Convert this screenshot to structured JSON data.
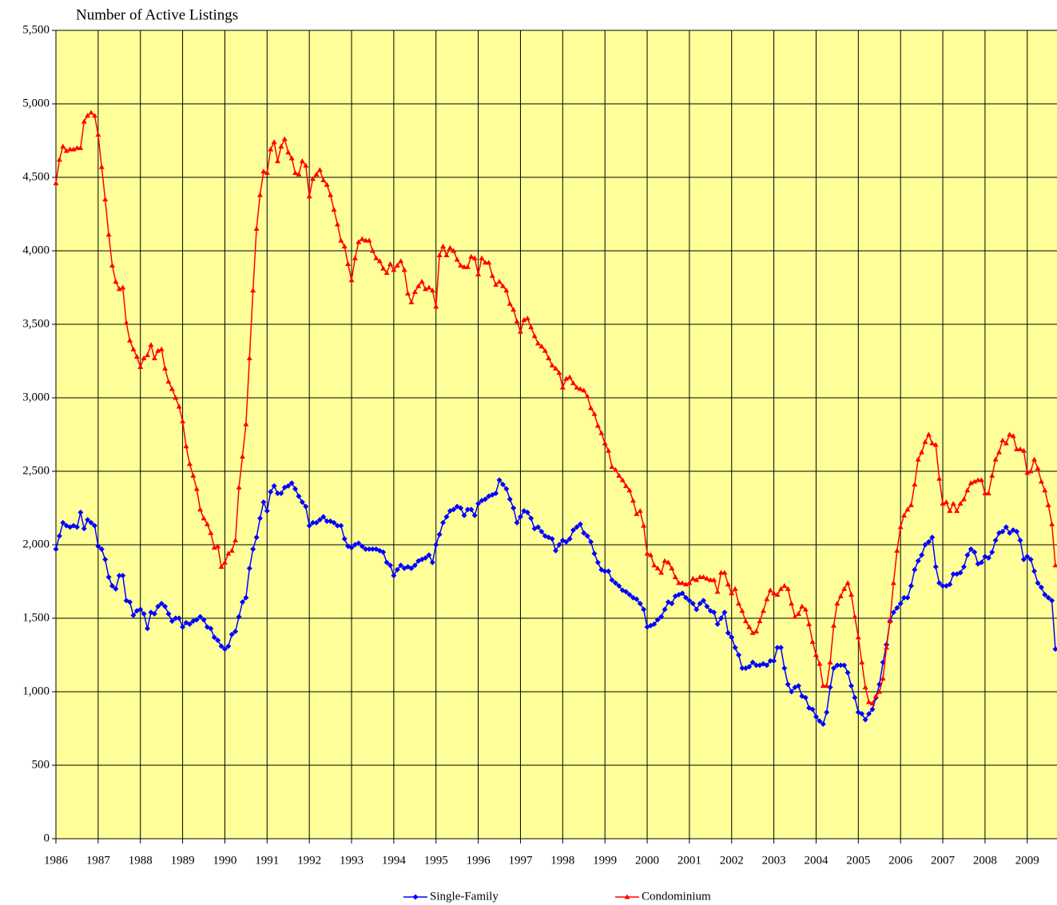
{
  "chart_data": {
    "type": "line",
    "title": "Number of Active Listings",
    "categories": [
      "1986",
      null,
      null,
      null,
      null,
      null,
      null,
      null,
      null,
      null,
      null,
      null,
      "1987",
      null,
      null,
      null,
      null,
      null,
      null,
      null,
      null,
      null,
      null,
      null,
      "1988",
      null,
      null,
      null,
      null,
      null,
      null,
      null,
      null,
      null,
      null,
      null,
      "1989",
      null,
      null,
      null,
      null,
      null,
      null,
      null,
      null,
      null,
      null,
      null,
      "1990",
      null,
      null,
      null,
      null,
      null,
      null,
      null,
      null,
      null,
      null,
      null,
      "1991",
      null,
      null,
      null,
      null,
      null,
      null,
      null,
      null,
      null,
      null,
      null,
      "1992",
      null,
      null,
      null,
      null,
      null,
      null,
      null,
      null,
      null,
      null,
      null,
      "1993",
      null,
      null,
      null,
      null,
      null,
      null,
      null,
      null,
      null,
      null,
      null,
      "1994",
      null,
      null,
      null,
      null,
      null,
      null,
      null,
      null,
      null,
      null,
      null,
      "1995",
      null,
      null,
      null,
      null,
      null,
      null,
      null,
      null,
      null,
      null,
      null,
      "1996",
      null,
      null,
      null,
      null,
      null,
      null,
      null,
      null,
      null,
      null,
      null,
      "1997",
      null,
      null,
      null,
      null,
      null,
      null,
      null,
      null,
      null,
      null,
      null,
      "1998",
      null,
      null,
      null,
      null,
      null,
      null,
      null,
      null,
      null,
      null,
      null,
      "1999",
      null,
      null,
      null,
      null,
      null,
      null,
      null,
      null,
      null,
      null,
      null,
      "2000",
      null,
      null,
      null,
      null,
      null,
      null,
      null,
      null,
      null,
      null,
      null,
      "2001",
      null,
      null,
      null,
      null,
      null,
      null,
      null,
      null,
      null,
      null,
      null,
      "2002",
      null,
      null,
      null,
      null,
      null,
      null,
      null,
      null,
      null,
      null,
      null,
      "2003",
      null,
      null,
      null,
      null,
      null,
      null,
      null,
      null,
      null,
      null,
      null,
      "2004",
      null,
      null,
      null,
      null,
      null,
      null,
      null,
      null,
      null,
      null,
      null,
      "2005",
      null,
      null,
      null,
      null,
      null,
      null,
      null,
      null,
      null,
      null,
      null,
      "2006",
      null,
      null,
      null,
      null,
      null,
      null,
      null,
      null,
      null,
      null,
      null,
      "2007",
      null,
      null,
      null,
      null,
      null,
      null,
      null,
      null,
      null,
      null,
      null,
      "2008",
      null,
      null,
      null,
      null,
      null,
      null,
      null,
      null,
      null,
      null,
      null,
      "2009",
      null,
      null,
      null,
      null,
      null,
      null,
      null,
      null
    ],
    "series": [
      {
        "name": "Single-Family",
        "color": "#0000ff",
        "marker": "diamond",
        "values": [
          1970,
          2060,
          2150,
          2130,
          2120,
          2130,
          2120,
          2220,
          2110,
          2170,
          2150,
          2130,
          1990,
          1970,
          1900,
          1780,
          1720,
          1700,
          1790,
          1790,
          1620,
          1610,
          1520,
          1550,
          1560,
          1530,
          1430,
          1540,
          1530,
          1580,
          1600,
          1580,
          1530,
          1480,
          1500,
          1500,
          1440,
          1470,
          1460,
          1480,
          1490,
          1510,
          1490,
          1440,
          1430,
          1370,
          1350,
          1310,
          1290,
          1310,
          1390,
          1410,
          1510,
          1610,
          1640,
          1840,
          1970,
          2050,
          2180,
          2290,
          2230,
          2360,
          2400,
          2350,
          2350,
          2390,
          2400,
          2420,
          2380,
          2330,
          2290,
          2260,
          2130,
          2150,
          2150,
          2170,
          2190,
          2160,
          2160,
          2150,
          2130,
          2130,
          2040,
          1990,
          1980,
          2000,
          2010,
          1990,
          1970,
          1970,
          1970,
          1970,
          1960,
          1950,
          1880,
          1860,
          1790,
          1830,
          1860,
          1840,
          1850,
          1840,
          1860,
          1890,
          1900,
          1910,
          1930,
          1880,
          2000,
          2070,
          2150,
          2190,
          2230,
          2240,
          2260,
          2250,
          2200,
          2240,
          2240,
          2200,
          2280,
          2300,
          2310,
          2330,
          2340,
          2350,
          2440,
          2410,
          2380,
          2310,
          2250,
          2150,
          2190,
          2230,
          2220,
          2180,
          2110,
          2120,
          2090,
          2060,
          2050,
          2040,
          1960,
          2000,
          2030,
          2020,
          2040,
          2100,
          2120,
          2140,
          2080,
          2060,
          2020,
          1940,
          1880,
          1830,
          1820,
          1820,
          1760,
          1740,
          1720,
          1690,
          1680,
          1660,
          1640,
          1630,
          1600,
          1560,
          1440,
          1450,
          1460,
          1490,
          1510,
          1560,
          1610,
          1600,
          1650,
          1660,
          1670,
          1640,
          1620,
          1600,
          1560,
          1600,
          1620,
          1580,
          1550,
          1540,
          1460,
          1500,
          1540,
          1400,
          1370,
          1300,
          1250,
          1160,
          1160,
          1170,
          1200,
          1180,
          1180,
          1190,
          1180,
          1210,
          1210,
          1300,
          1300,
          1160,
          1050,
          1000,
          1030,
          1040,
          970,
          960,
          890,
          880,
          830,
          800,
          780,
          860,
          1030,
          1160,
          1180,
          1180,
          1180,
          1130,
          1040,
          960,
          860,
          850,
          810,
          850,
          880,
          960,
          1050,
          1200,
          1320,
          1480,
          1540,
          1570,
          1600,
          1640,
          1640,
          1720,
          1830,
          1890,
          1930,
          2000,
          2020,
          2050,
          1850,
          1740,
          1720,
          1720,
          1730,
          1800,
          1800,
          1810,
          1850,
          1930,
          1970,
          1950,
          1870,
          1880,
          1920,
          1910,
          1950,
          2030,
          2080,
          2090,
          2120,
          2080,
          2100,
          2090,
          2030,
          1900,
          1920,
          1900,
          1820,
          1740,
          1710,
          1660,
          1640,
          1620,
          1290
        ]
      },
      {
        "name": "Condominium",
        "color": "#ff0000",
        "marker": "triangle",
        "values": [
          4460,
          4620,
          4710,
          4680,
          4690,
          4690,
          4700,
          4700,
          4880,
          4920,
          4940,
          4920,
          4790,
          4570,
          4350,
          4110,
          3900,
          3790,
          3740,
          3750,
          3510,
          3390,
          3330,
          3280,
          3210,
          3270,
          3290,
          3360,
          3270,
          3320,
          3330,
          3200,
          3110,
          3060,
          3000,
          2940,
          2840,
          2670,
          2550,
          2470,
          2380,
          2240,
          2180,
          2140,
          2080,
          1980,
          1990,
          1850,
          1880,
          1940,
          1960,
          2030,
          2390,
          2600,
          2820,
          3270,
          3730,
          4150,
          4380,
          4540,
          4530,
          4690,
          4740,
          4610,
          4710,
          4760,
          4670,
          4630,
          4530,
          4520,
          4610,
          4580,
          4370,
          4490,
          4520,
          4550,
          4480,
          4450,
          4380,
          4280,
          4180,
          4070,
          4030,
          3910,
          3800,
          3950,
          4060,
          4080,
          4070,
          4070,
          4000,
          3950,
          3930,
          3880,
          3850,
          3910,
          3870,
          3900,
          3930,
          3870,
          3710,
          3650,
          3720,
          3760,
          3790,
          3740,
          3750,
          3730,
          3620,
          3970,
          4030,
          3970,
          4020,
          4000,
          3940,
          3900,
          3890,
          3890,
          3960,
          3950,
          3840,
          3950,
          3920,
          3920,
          3830,
          3770,
          3790,
          3760,
          3730,
          3640,
          3600,
          3520,
          3450,
          3530,
          3540,
          3480,
          3420,
          3370,
          3350,
          3320,
          3270,
          3220,
          3200,
          3170,
          3070,
          3130,
          3140,
          3100,
          3070,
          3060,
          3050,
          3010,
          2930,
          2890,
          2810,
          2760,
          2690,
          2640,
          2530,
          2510,
          2470,
          2440,
          2400,
          2370,
          2300,
          2210,
          2230,
          2130,
          1940,
          1930,
          1860,
          1840,
          1810,
          1890,
          1880,
          1840,
          1780,
          1740,
          1740,
          1730,
          1740,
          1770,
          1760,
          1780,
          1780,
          1770,
          1760,
          1760,
          1680,
          1810,
          1810,
          1730,
          1670,
          1700,
          1600,
          1550,
          1480,
          1440,
          1400,
          1410,
          1480,
          1550,
          1630,
          1690,
          1670,
          1660,
          1700,
          1720,
          1700,
          1600,
          1510,
          1530,
          1580,
          1560,
          1460,
          1340,
          1250,
          1190,
          1040,
          1040,
          1200,
          1450,
          1600,
          1650,
          1700,
          1740,
          1660,
          1510,
          1370,
          1200,
          1030,
          930,
          920,
          970,
          1000,
          1090,
          1300,
          1480,
          1740,
          1960,
          2120,
          2200,
          2240,
          2270,
          2410,
          2580,
          2630,
          2700,
          2750,
          2690,
          2680,
          2450,
          2280,
          2290,
          2230,
          2280,
          2230,
          2280,
          2310,
          2370,
          2420,
          2430,
          2440,
          2440,
          2350,
          2350,
          2470,
          2580,
          2630,
          2710,
          2690,
          2750,
          2740,
          2650,
          2650,
          2640,
          2490,
          2500,
          2580,
          2520,
          2430,
          2370,
          2270,
          2140,
          1860
        ]
      }
    ],
    "ylim": [
      0,
      5500
    ],
    "yticks": [
      0,
      500,
      {
        "value": 1000,
        "label": "1,000"
      },
      {
        "value": 1500,
        "label": "1,500"
      },
      {
        "value": 2000,
        "label": "2,000"
      },
      {
        "value": 2500,
        "label": "2,500"
      },
      {
        "value": 3000,
        "label": "3,000"
      },
      {
        "value": 3500,
        "label": "3,500"
      },
      {
        "value": 4000,
        "label": "4,000"
      },
      {
        "value": 4500,
        "label": "4,500"
      },
      {
        "value": 5000,
        "label": "5,000"
      },
      {
        "value": 5500,
        "label": "5,500"
      }
    ],
    "grid": true,
    "legend": "bottom",
    "background": "#ffff99"
  }
}
